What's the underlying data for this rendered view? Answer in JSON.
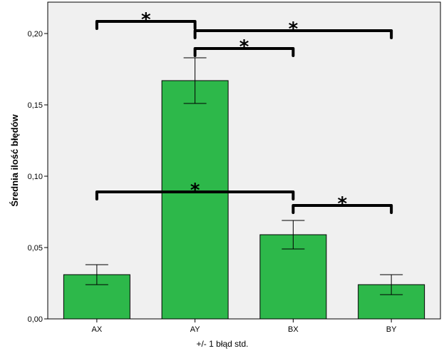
{
  "chart_data": {
    "type": "bar",
    "categories": [
      "AX",
      "AY",
      "BX",
      "BY"
    ],
    "values": [
      0.031,
      0.167,
      0.059,
      0.024
    ],
    "error_bars": [
      {
        "low": 0.024,
        "high": 0.038
      },
      {
        "low": 0.151,
        "high": 0.183
      },
      {
        "low": 0.049,
        "high": 0.069
      },
      {
        "low": 0.017,
        "high": 0.031
      }
    ],
    "ylabel": "Średnia ilość błędów",
    "xlabel": "+/- 1 błąd std.",
    "ylim": [
      0,
      0.22
    ],
    "yticks": [
      0.0,
      0.05,
      0.1,
      0.15,
      0.2
    ],
    "ytick_labels": [
      "0,00",
      "0,05",
      "0,10",
      "0,15",
      "0,20"
    ],
    "grid": false,
    "bar_color": "#2db84a",
    "plot_background": "#f0f0f0",
    "significance_marker": "*",
    "significance_brackets": [
      {
        "from": "AX",
        "to": "AY",
        "level": 0.2085,
        "label": "*"
      },
      {
        "from": "AY",
        "to": "BY",
        "level": 0.202,
        "label": "*"
      },
      {
        "from": "AY",
        "to": "BX",
        "level": 0.1895,
        "label": "*"
      },
      {
        "from": "AX",
        "to": "BX",
        "level": 0.089,
        "label": "*"
      },
      {
        "from": "BX",
        "to": "BY",
        "level": 0.0795,
        "label": "*"
      }
    ]
  }
}
